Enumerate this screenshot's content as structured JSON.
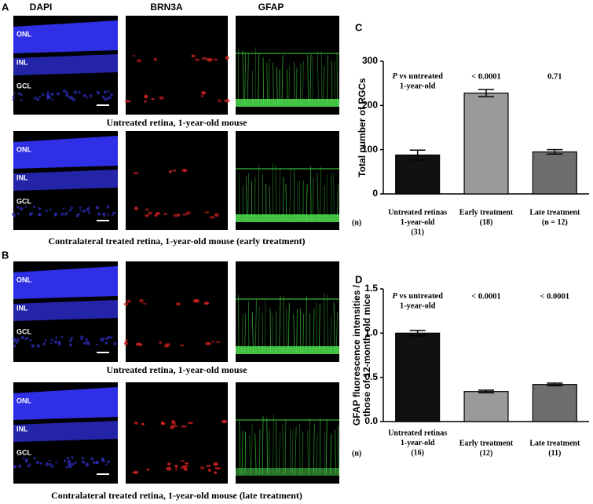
{
  "figure": {
    "panel_labels": [
      "A",
      "B"
    ],
    "column_headers": [
      "DAPI",
      "BRN3A",
      "GFAP"
    ],
    "layer_labels": [
      "ONL",
      "INL",
      "GCL"
    ],
    "captions": [
      "Untreated retina, 1-year-old mouse",
      "Contralateral treated retina, 1-year-old mouse (early treatment)",
      "Untreated retina, 1-year-old mouse",
      "Contralateral treated retina, 1-year-old mouse (late treatment)"
    ]
  },
  "chart_data": [
    {
      "type": "bar",
      "panel_label": "C",
      "ylabel": [
        "Total number of RGCs"
      ],
      "categories": [
        "Untreated retinas",
        "Early treatment",
        "Late treatment"
      ],
      "category_sublabels": [
        [
          "1-year-old",
          "(31)"
        ],
        [
          "(18)"
        ],
        [
          "(n = 12)"
        ]
      ],
      "n_label": "(n)",
      "values": [
        88,
        228,
        95
      ],
      "errors": [
        11,
        8,
        5
      ],
      "colors": [
        "#111111",
        "#9a9a9a",
        "#6e6e6e"
      ],
      "comparison_label": {
        "italic": "P",
        "text": "vs untreated",
        "line2": "1-year-old"
      },
      "p_values": [
        null,
        "< 0.0001",
        "0.71"
      ],
      "ylim": [
        0,
        300
      ],
      "yticks": [
        0,
        100,
        200,
        300
      ]
    },
    {
      "type": "bar",
      "panel_label": "D",
      "ylabel": [
        "GFAP fluorescence intensities /",
        "those of 12-month-old mice"
      ],
      "categories": [
        "Untreated retinas",
        "Early treatment",
        "Late treatment"
      ],
      "category_sublabels": [
        [
          "1-year-old",
          "(16)"
        ],
        [
          "(12)"
        ],
        [
          "(11)"
        ]
      ],
      "n_label": "(n)",
      "values": [
        1.0,
        0.34,
        0.42
      ],
      "errors": [
        0.03,
        0.015,
        0.015
      ],
      "colors": [
        "#111111",
        "#9a9a9a",
        "#6e6e6e"
      ],
      "comparison_label": {
        "italic": "P",
        "text": "vs untreated",
        "line2": "1-year-old"
      },
      "p_values": [
        null,
        "< 0.0001",
        "< 0.0001"
      ],
      "ylim": [
        0,
        1.5
      ],
      "yticks": [
        {
          "value": 0,
          "label": "0.0"
        },
        {
          "value": 0.5,
          "label": "0.5"
        },
        {
          "value": 1.0,
          "label": "1.0"
        },
        {
          "value": 1.5,
          "label": "1.5"
        }
      ]
    }
  ]
}
